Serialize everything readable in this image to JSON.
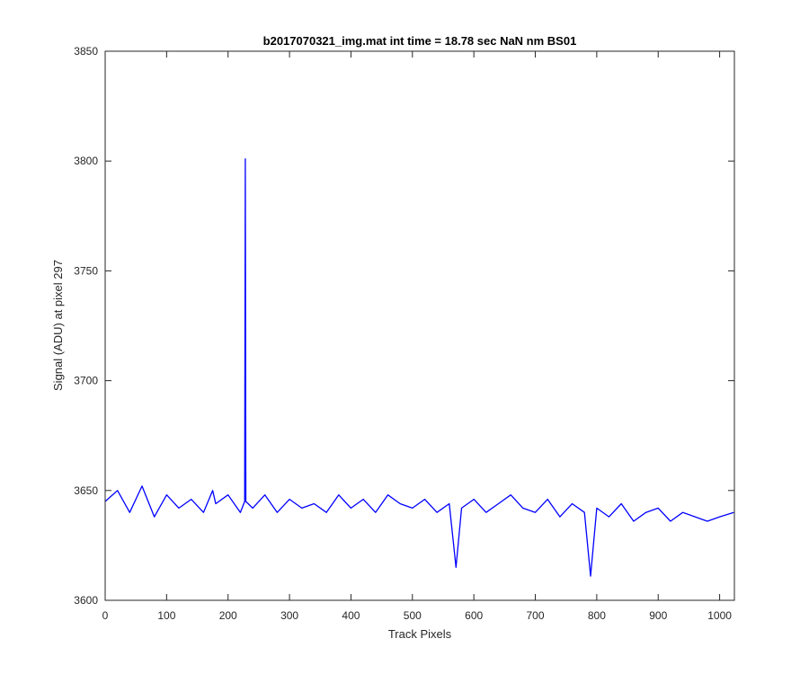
{
  "chart_data": {
    "type": "line",
    "title": "b2017070321_img.mat int time = 18.78 sec  NaN nm BS01",
    "xlabel": "Track Pixels",
    "ylabel": "Signal (ADU) at pixel 297",
    "xlim": [
      0,
      1024
    ],
    "ylim": [
      3600,
      3850
    ],
    "xticks": [
      0,
      100,
      200,
      300,
      400,
      500,
      600,
      700,
      800,
      900,
      1000
    ],
    "yticks": [
      3600,
      3650,
      3700,
      3750,
      3800,
      3850
    ],
    "grid": false,
    "line_color": "#0000ff",
    "series": [
      {
        "x": [
          0,
          20,
          40,
          60,
          80,
          100,
          120,
          140,
          160,
          175,
          180,
          200,
          220,
          227,
          228,
          229,
          240,
          260,
          280,
          300,
          320,
          340,
          360,
          380,
          400,
          420,
          440,
          460,
          480,
          500,
          520,
          540,
          560,
          571,
          580,
          600,
          620,
          640,
          660,
          680,
          700,
          720,
          740,
          760,
          780,
          790,
          800,
          820,
          840,
          860,
          880,
          900,
          920,
          940,
          960,
          980,
          1000,
          1023
        ],
        "y": [
          3645,
          3650,
          3640,
          3652,
          3638,
          3648,
          3642,
          3646,
          3640,
          3650,
          3644,
          3648,
          3640,
          3645,
          3801,
          3645,
          3642,
          3648,
          3640,
          3646,
          3642,
          3644,
          3640,
          3648,
          3642,
          3646,
          3640,
          3648,
          3644,
          3642,
          3646,
          3640,
          3644,
          3615,
          3642,
          3646,
          3640,
          3644,
          3648,
          3642,
          3640,
          3646,
          3638,
          3644,
          3640,
          3611,
          3642,
          3638,
          3644,
          3636,
          3640,
          3642,
          3636,
          3640,
          3638,
          3636,
          3638,
          3640
        ]
      }
    ]
  }
}
